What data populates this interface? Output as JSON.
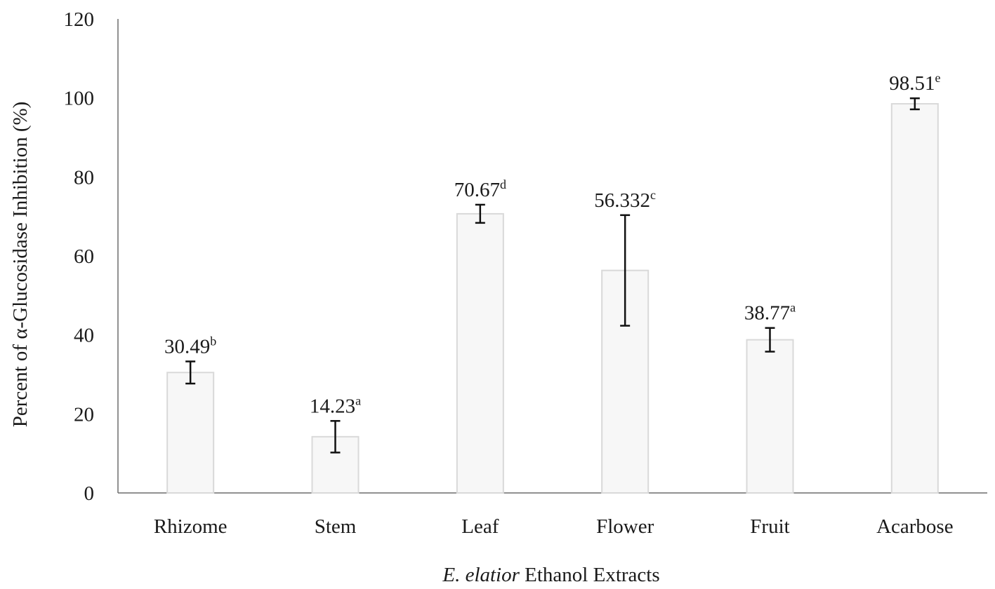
{
  "chart_data": {
    "type": "bar",
    "categories": [
      "Rhizome",
      "Stem",
      "Leaf",
      "Flower",
      "Fruit",
      "Acarbose"
    ],
    "values": [
      30.49,
      14.23,
      70.67,
      56.332,
      38.77,
      98.51
    ],
    "error": [
      2.8,
      4.0,
      2.3,
      14.0,
      3.0,
      1.4
    ],
    "labels": [
      {
        "value": "30.49",
        "letter": "b"
      },
      {
        "value": "14.23",
        "letter": "a"
      },
      {
        "value": "70.67",
        "letter": "d"
      },
      {
        "value": "56.332",
        "letter": "c"
      },
      {
        "value": "38.77",
        "letter": "a"
      },
      {
        "value": "98.51",
        "letter": "e"
      }
    ],
    "ylim": [
      0,
      120
    ],
    "yticks": [
      "0",
      "20",
      "40",
      "60",
      "80",
      "100",
      "120"
    ],
    "xlabel_italic": "E. elatior",
    "xlabel_rest": " Ethanol Extracts",
    "ylabel": "Percent of α-Glucosidase Inhibition (%)",
    "grid": false,
    "colors": {
      "bar_fill": "#f7f7f7",
      "bar_stroke": "#d9d9d9",
      "error_bar": "#111111",
      "axis": "#6d6d6d"
    }
  }
}
